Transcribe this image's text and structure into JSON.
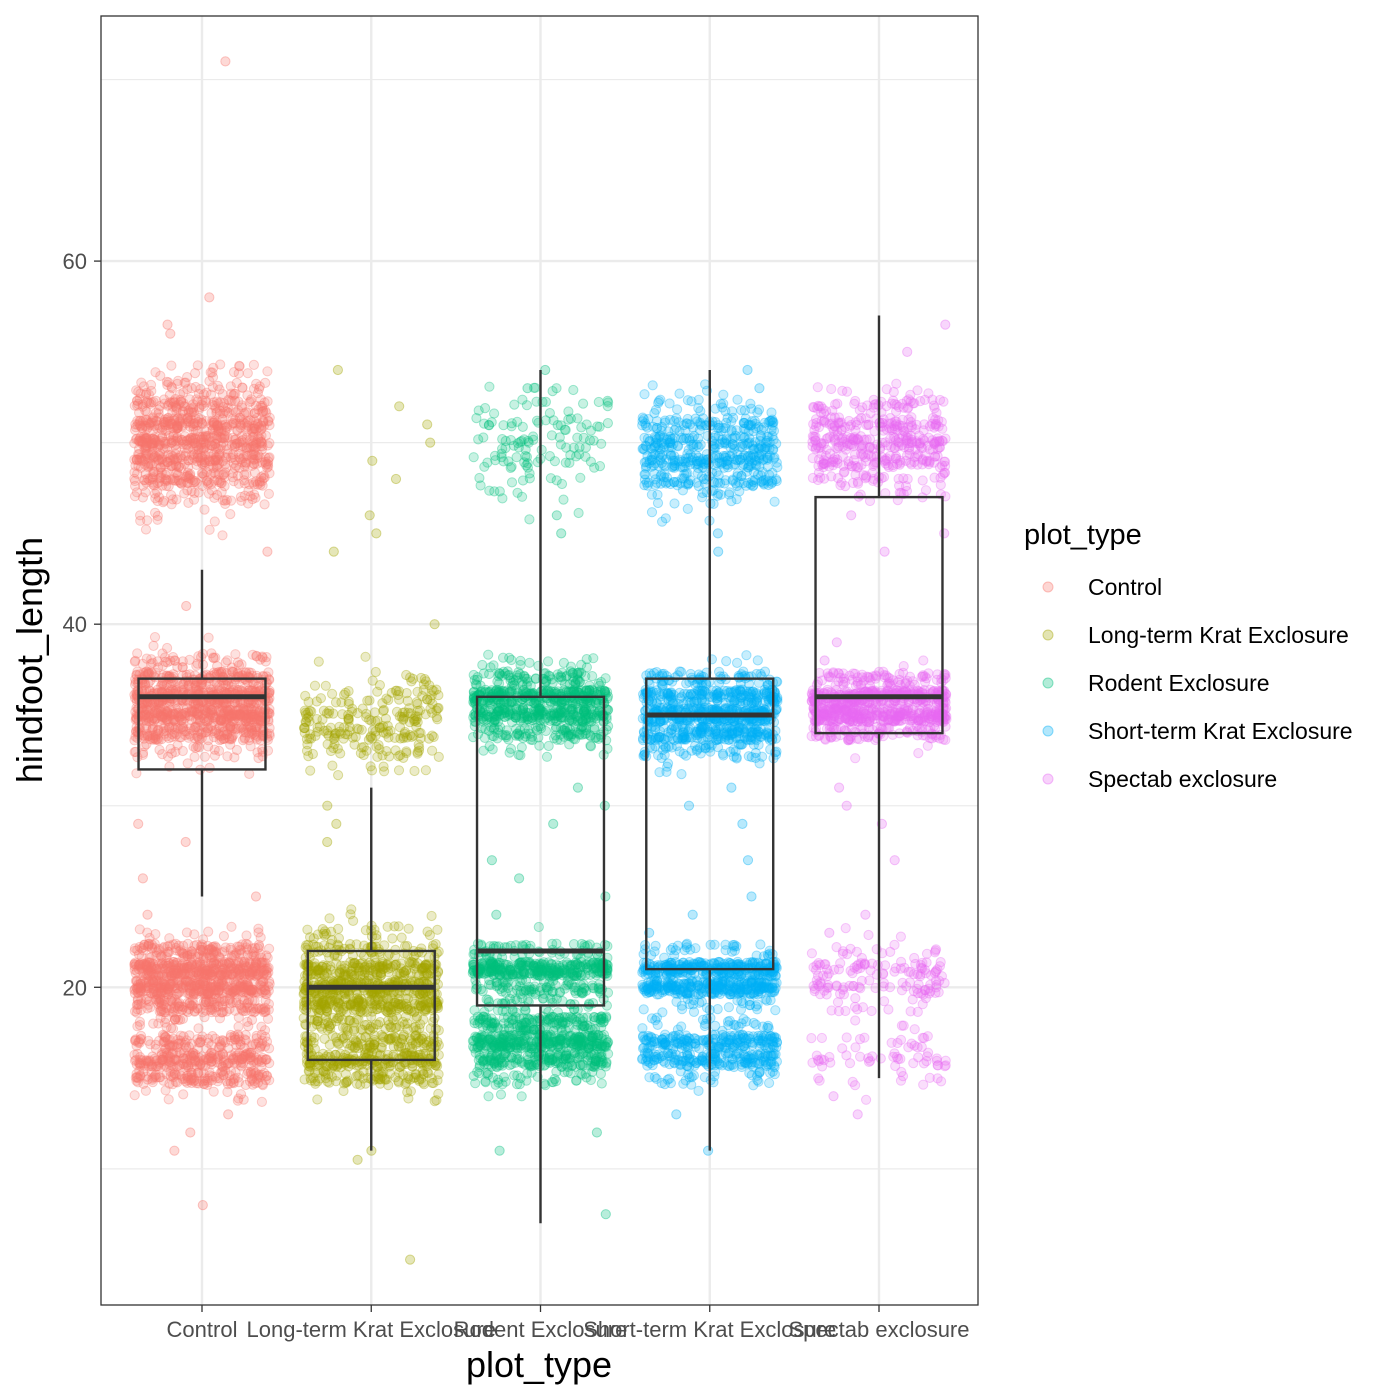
{
  "chart_data": {
    "type": "box-jitter",
    "xlabel": "plot_type",
    "ylabel": "hindfoot_length",
    "ylim": [
      2.5,
      73.5
    ],
    "yticks": [
      20,
      40,
      60
    ],
    "grid": true,
    "legend": {
      "title": "plot_type",
      "position": "right"
    },
    "categories": [
      "Control",
      "Long-term Krat Exclosure",
      "Rodent Exclosure",
      "Short-term Krat Exclosure",
      "Spectab exclosure"
    ],
    "colors": [
      "#F8766D",
      "#A3A500",
      "#00BF7D",
      "#00B0F6",
      "#E76BF3"
    ],
    "boxes": [
      {
        "q1": 32,
        "median": 36,
        "q3": 37,
        "lower": 25,
        "upper": 43
      },
      {
        "q1": 16,
        "median": 20,
        "q3": 22,
        "lower": 11,
        "upper": 31
      },
      {
        "q1": 19,
        "median": 22,
        "q3": 36,
        "lower": 7,
        "upper": 54
      },
      {
        "q1": 21,
        "median": 35,
        "q3": 37,
        "lower": 11,
        "upper": 54
      },
      {
        "q1": 34,
        "median": 36,
        "q3": 47,
        "lower": 15,
        "upper": 57
      }
    ],
    "points": [
      {
        "clusters": [
          {
            "center": 50,
            "spread": 3.2,
            "count": 900
          },
          {
            "center": 35.5,
            "spread": 2.2,
            "count": 1000
          },
          {
            "center": 20.5,
            "spread": 1.8,
            "count": 900
          },
          {
            "center": 16,
            "spread": 1.4,
            "count": 450
          }
        ],
        "outliers": [
          71,
          58,
          56.5,
          56,
          44,
          41,
          29,
          28,
          26,
          25,
          24,
          13,
          12,
          11,
          8
        ]
      },
      {
        "clusters": [
          {
            "center": 34.5,
            "spread": 2.4,
            "count": 240
          },
          {
            "center": 20,
            "spread": 2.5,
            "count": 800
          },
          {
            "center": 16,
            "spread": 1.4,
            "count": 350
          }
        ],
        "outliers": [
          54,
          52,
          51,
          50,
          49,
          48,
          46,
          45,
          44,
          40,
          30,
          29,
          28,
          11,
          10.5,
          5
        ]
      },
      {
        "clusters": [
          {
            "center": 50,
            "spread": 2.5,
            "count": 130
          },
          {
            "center": 35.5,
            "spread": 1.8,
            "count": 700
          },
          {
            "center": 21,
            "spread": 1.0,
            "count": 450
          },
          {
            "center": 17,
            "spread": 1.8,
            "count": 700
          }
        ],
        "outliers": [
          54,
          53,
          46,
          45,
          31,
          30,
          29,
          27,
          26,
          25,
          24,
          12,
          11,
          7.5
        ]
      },
      {
        "clusters": [
          {
            "center": 49.5,
            "spread": 2.4,
            "count": 500
          },
          {
            "center": 35,
            "spread": 2.0,
            "count": 800
          },
          {
            "center": 20.5,
            "spread": 1.1,
            "count": 600
          },
          {
            "center": 16.5,
            "spread": 1.4,
            "count": 400
          }
        ],
        "outliers": [
          54,
          53,
          45,
          44,
          31,
          30,
          29,
          27,
          25,
          24,
          23,
          13,
          11
        ]
      },
      {
        "clusters": [
          {
            "center": 50,
            "spread": 2.4,
            "count": 420
          },
          {
            "center": 35.5,
            "spread": 1.4,
            "count": 750
          },
          {
            "center": 20.5,
            "spread": 1.4,
            "count": 150
          },
          {
            "center": 16,
            "spread": 1.4,
            "count": 70
          }
        ],
        "outliers": [
          56.5,
          55,
          46,
          45,
          44,
          39,
          38,
          31,
          30,
          29,
          27,
          24,
          23,
          14,
          13
        ]
      }
    ]
  }
}
